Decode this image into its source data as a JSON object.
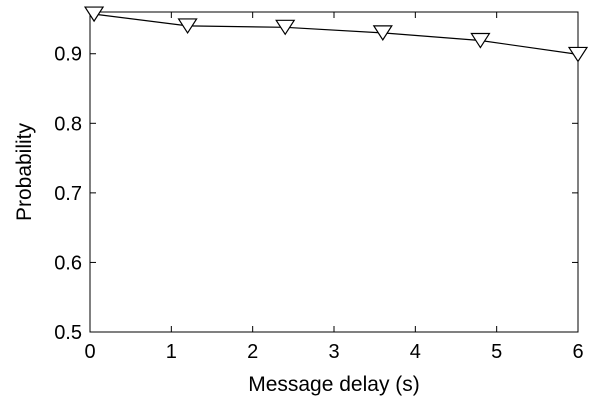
{
  "chart_data": {
    "type": "line",
    "title": "",
    "xlabel": "Message delay (s)",
    "ylabel": "Probability",
    "xlim": [
      0,
      6
    ],
    "ylim": [
      0.5,
      0.96
    ],
    "xticks": [
      0,
      1,
      2,
      3,
      4,
      5,
      6
    ],
    "yticks": [
      0.5,
      0.6,
      0.7,
      0.8,
      0.9
    ],
    "grid": false,
    "series": [
      {
        "marker": "down-triangle",
        "color": "#000000",
        "x": [
          0.05,
          1.2,
          2.4,
          3.6,
          4.8,
          6.0
        ],
        "y": [
          0.957,
          0.94,
          0.938,
          0.93,
          0.919,
          0.899
        ]
      }
    ]
  }
}
